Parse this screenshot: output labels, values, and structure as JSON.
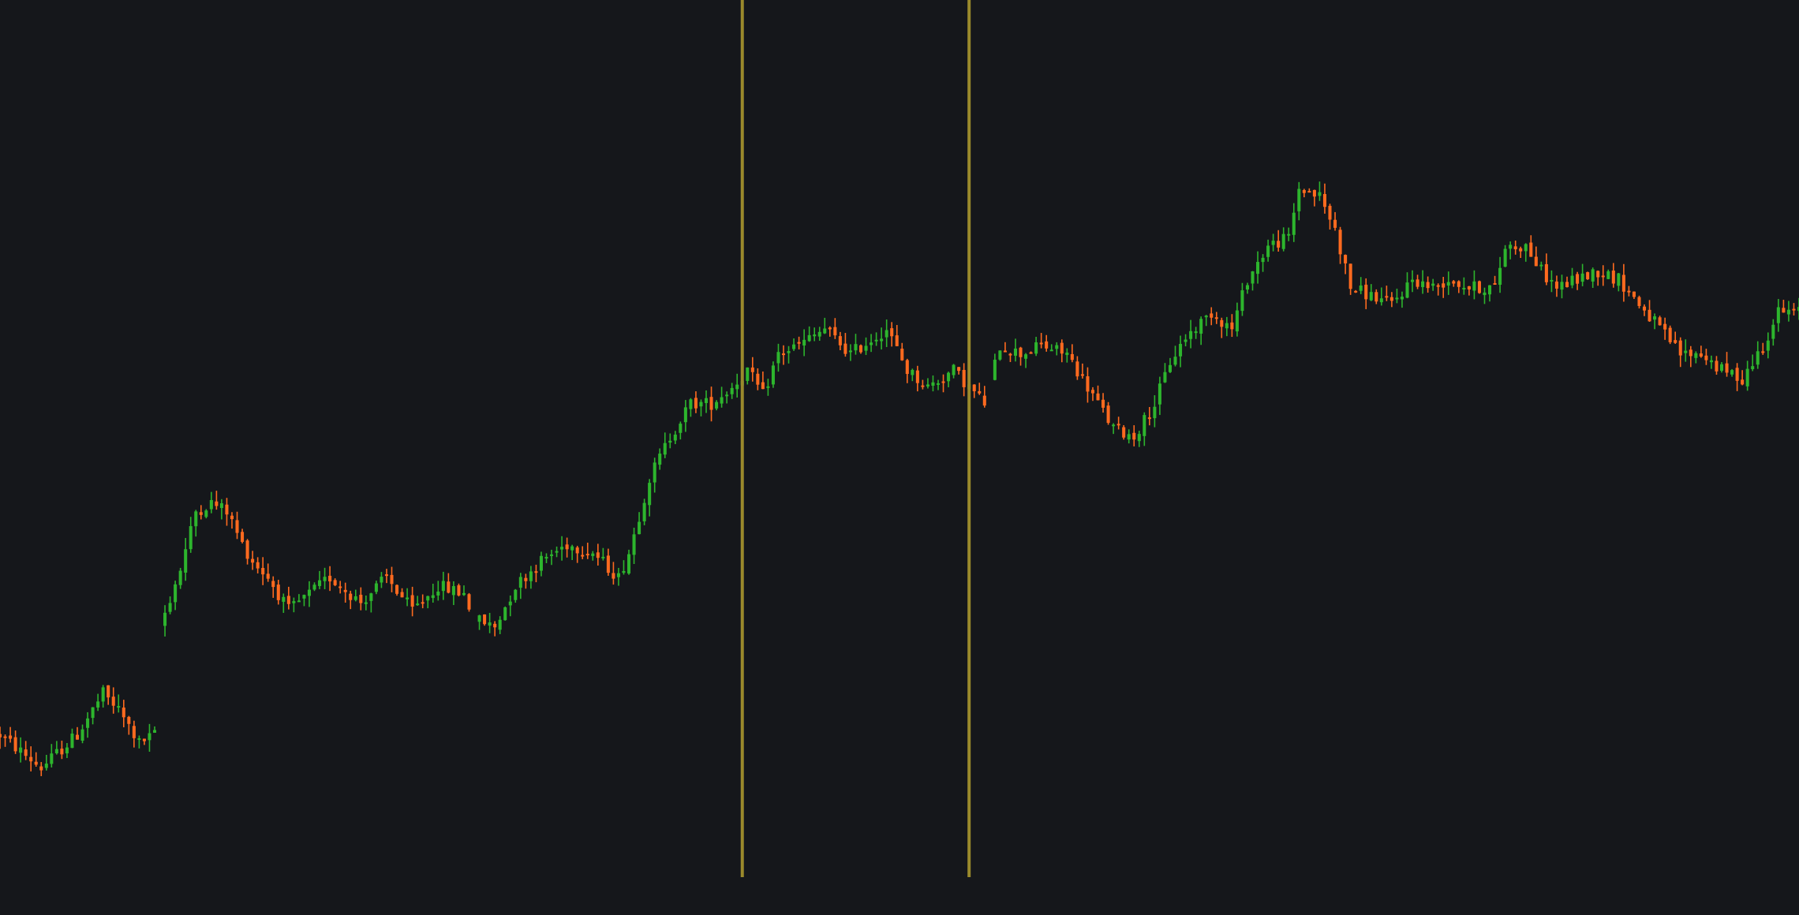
{
  "colors": {
    "background": "#15171b",
    "up": "#2db52d",
    "down": "#ff6a1f",
    "marker": "#9a8a2c"
  },
  "chart_data": {
    "type": "candlestick",
    "grid": false,
    "legend": "none",
    "axes_visible": false,
    "x_range": [
      0,
      349
    ],
    "y_range": [
      0,
      100
    ],
    "vertical_markers": [
      {
        "name": "",
        "x": 144
      },
      {
        "name": "",
        "x": 188
      }
    ],
    "anchors": [
      [
        0,
        17
      ],
      [
        8,
        13
      ],
      [
        15,
        17
      ],
      [
        20,
        22
      ],
      [
        23,
        20
      ],
      [
        27,
        16
      ],
      [
        30,
        17
      ],
      [
        31,
        30
      ],
      [
        35,
        37
      ],
      [
        38,
        44
      ],
      [
        41,
        45
      ],
      [
        44,
        44
      ],
      [
        47,
        40
      ],
      [
        49,
        38
      ],
      [
        52,
        36
      ],
      [
        56,
        32
      ],
      [
        60,
        34
      ],
      [
        64,
        36
      ],
      [
        70,
        33
      ],
      [
        75,
        36
      ],
      [
        80,
        32
      ],
      [
        85,
        35
      ],
      [
        90,
        34
      ],
      [
        92,
        31
      ],
      [
        96,
        30
      ],
      [
        100,
        35
      ],
      [
        105,
        38
      ],
      [
        110,
        40
      ],
      [
        115,
        39
      ],
      [
        120,
        36
      ],
      [
        122,
        39
      ],
      [
        126,
        48
      ],
      [
        130,
        53
      ],
      [
        134,
        57
      ],
      [
        138,
        57
      ],
      [
        142,
        59
      ],
      [
        145,
        61
      ],
      [
        148,
        58
      ],
      [
        151,
        63
      ],
      [
        155,
        64
      ],
      [
        160,
        66
      ],
      [
        165,
        63
      ],
      [
        172,
        66
      ],
      [
        176,
        61
      ],
      [
        180,
        59
      ],
      [
        185,
        61
      ],
      [
        191,
        57
      ],
      [
        194,
        64
      ],
      [
        198,
        63
      ],
      [
        202,
        64
      ],
      [
        207,
        63
      ],
      [
        212,
        58
      ],
      [
        216,
        54
      ],
      [
        220,
        53
      ],
      [
        224,
        57
      ],
      [
        227,
        62
      ],
      [
        230,
        65
      ],
      [
        235,
        68
      ],
      [
        239,
        66
      ],
      [
        242,
        72
      ],
      [
        246,
        76
      ],
      [
        250,
        77
      ],
      [
        252,
        83
      ],
      [
        256,
        82
      ],
      [
        259,
        78
      ],
      [
        262,
        71
      ],
      [
        266,
        70
      ],
      [
        270,
        69
      ],
      [
        274,
        72
      ],
      [
        278,
        71
      ],
      [
        281,
        72
      ],
      [
        285,
        71
      ],
      [
        290,
        71
      ],
      [
        292,
        76
      ],
      [
        296,
        76
      ],
      [
        299,
        73
      ],
      [
        302,
        71
      ],
      [
        306,
        72
      ],
      [
        310,
        73
      ],
      [
        314,
        72
      ],
      [
        318,
        69
      ],
      [
        322,
        66
      ],
      [
        326,
        63
      ],
      [
        330,
        63
      ],
      [
        334,
        61
      ],
      [
        338,
        60
      ],
      [
        342,
        64
      ],
      [
        345,
        68
      ],
      [
        349,
        68
      ]
    ],
    "gaps": [
      [
        31,
        31
      ],
      [
        92,
        92
      ],
      [
        192,
        192
      ]
    ]
  }
}
